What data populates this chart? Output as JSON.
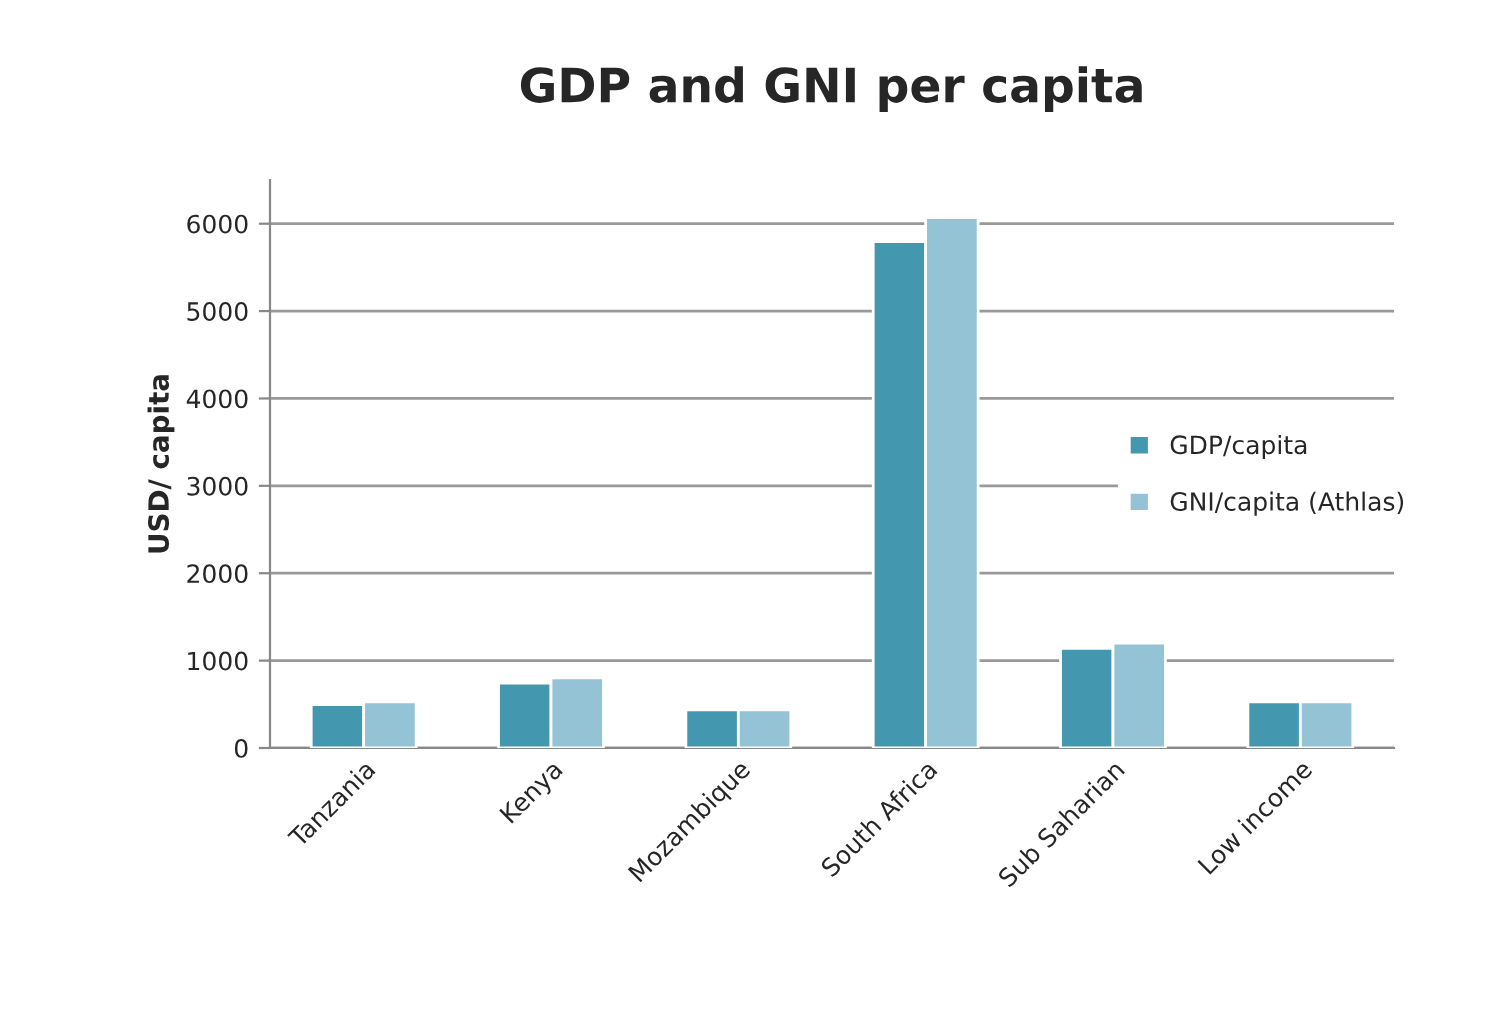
{
  "chart_data": {
    "type": "bar",
    "title": "GDP and GNI per capita",
    "ylabel": "USD/ capita",
    "categories": [
      "Tanzania",
      "Kenya",
      "Mozambique",
      "South Africa",
      "Sub Saharian",
      "Low income"
    ],
    "series": [
      {
        "name": "GDP/capita",
        "color": "#4397ae",
        "values": [
          497,
          742,
          436,
          5795,
          1139,
          527
        ]
      },
      {
        "name": "GNI/capita (Athlas)",
        "color": "#93c3d5",
        "values": [
          527,
          803,
          436,
          6070,
          1200,
          527
        ]
      }
    ],
    "ylim": [
      0,
      6500
    ],
    "yticks": [
      0,
      1000,
      2000,
      3000,
      4000,
      5000,
      6000
    ],
    "grid": "y",
    "legend": "right"
  }
}
